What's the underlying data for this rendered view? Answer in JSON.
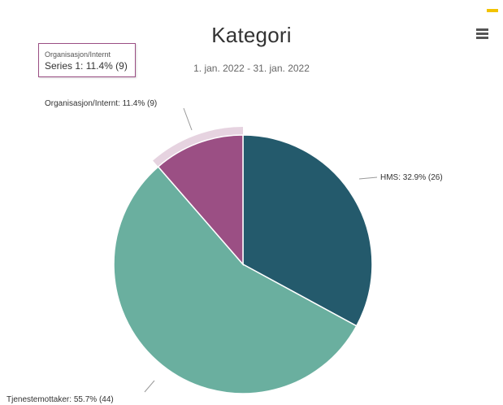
{
  "chart_data": {
    "type": "pie",
    "title": "Kategori",
    "subtitle": "1. jan. 2022 - 31. jan. 2022",
    "series_name": "Series 1",
    "slices": [
      {
        "label": "HMS",
        "value": 26,
        "percent": "32.9%",
        "color": "#245a6c",
        "data_label": "HMS: 32.9% (26)"
      },
      {
        "label": "Tjenestemottaker",
        "value": 44,
        "percent": "55.7%",
        "color": "#6aaf9f",
        "data_label": "Tjenestemottaker: 55.7% (44)"
      },
      {
        "label": "Organisasjon/Internt",
        "value": 9,
        "percent": "11.4%",
        "color": "#9b4f84",
        "data_label": "Organisasjon/Internt: 11.4% (9)"
      }
    ],
    "hovered_slice": "Organisasjon/Internt"
  },
  "tooltip": {
    "heading": "Organisasjon/Internt",
    "value_line": "Series 1: 11.4% (9)"
  },
  "menu": {
    "icon": "hamburger-menu-icon"
  }
}
